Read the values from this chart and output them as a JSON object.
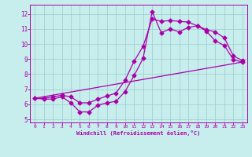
{
  "xlabel": "Windchill (Refroidissement éolien,°C)",
  "bg_color": "#c8eded",
  "line_color": "#aa00aa",
  "grid_color": "#99cccc",
  "xlim": [
    -0.5,
    23.5
  ],
  "ylim": [
    4.8,
    12.6
  ],
  "xticks": [
    0,
    1,
    2,
    3,
    4,
    5,
    6,
    7,
    8,
    9,
    10,
    11,
    12,
    13,
    14,
    15,
    16,
    17,
    18,
    19,
    20,
    21,
    22,
    23
  ],
  "yticks": [
    5,
    6,
    7,
    8,
    9,
    10,
    11,
    12
  ],
  "line1_x": [
    0,
    1,
    2,
    3,
    4,
    5,
    6,
    7,
    8,
    9,
    10,
    11,
    12,
    13,
    14,
    15,
    16,
    17,
    18,
    19,
    20,
    21,
    22,
    23
  ],
  "line1_y": [
    6.4,
    6.35,
    6.35,
    6.5,
    6.1,
    5.5,
    5.5,
    5.95,
    6.1,
    6.2,
    6.85,
    7.9,
    9.05,
    12.15,
    10.75,
    11.0,
    10.8,
    11.1,
    11.2,
    10.85,
    10.2,
    9.9,
    8.95,
    8.8
  ],
  "line2_x": [
    0,
    23
  ],
  "line2_y": [
    6.4,
    8.8
  ],
  "line3_x": [
    0,
    1,
    2,
    3,
    4,
    5,
    6,
    7,
    8,
    9,
    10,
    11,
    12,
    13,
    14,
    15,
    16,
    17,
    18,
    19,
    20,
    21,
    22,
    23
  ],
  "line3_y": [
    6.4,
    6.4,
    6.5,
    6.6,
    6.5,
    6.1,
    6.1,
    6.35,
    6.55,
    6.75,
    7.6,
    8.85,
    9.85,
    11.65,
    11.5,
    11.55,
    11.5,
    11.45,
    11.2,
    10.95,
    10.8,
    10.4,
    9.2,
    8.9
  ],
  "marker": "D",
  "marker_size": 2.5,
  "line_width": 0.9
}
